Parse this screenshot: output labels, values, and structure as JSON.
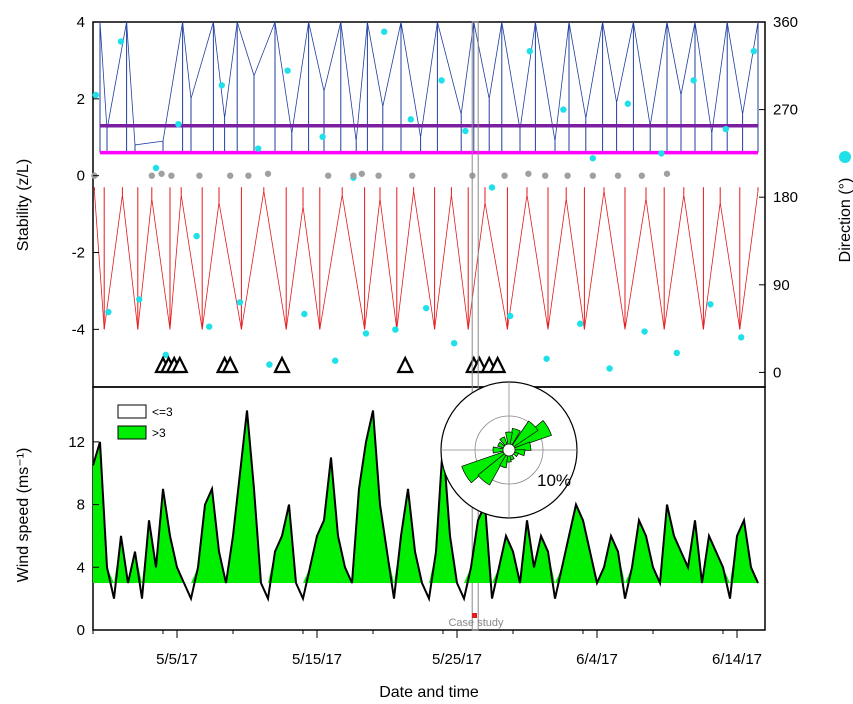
{
  "chart_data": [
    {
      "panel": "top",
      "type": "line",
      "ylabel": "Stability (z/L)",
      "ylim": [
        -5.5,
        4
      ],
      "yticks": [
        "4",
        "2",
        "0",
        "-2",
        "-4"
      ],
      "y2label": "Direction (°)",
      "y2lim": [
        -15,
        360
      ],
      "y2ticks": [
        "360",
        "270",
        "180",
        "90",
        "0"
      ],
      "xlim": [
        "2017-04-29",
        "2017-06-16"
      ],
      "series": [
        {
          "role": "stable",
          "color": "#1f3fa0",
          "values": [
            [
              0.5,
              4
            ],
            [
              1,
              1.2
            ],
            [
              2.4,
              4
            ],
            [
              3,
              0.8
            ],
            [
              5,
              0.9
            ],
            [
              6.4,
              4
            ],
            [
              7,
              2
            ],
            [
              8.6,
              4
            ],
            [
              9.4,
              1.5
            ],
            [
              10.3,
              4
            ],
            [
              11.5,
              2.6
            ],
            [
              13,
              4
            ],
            [
              14.2,
              1.1
            ],
            [
              15.4,
              4
            ],
            [
              16.5,
              2.2
            ],
            [
              17.7,
              4
            ],
            [
              18.8,
              0.9
            ],
            [
              19.6,
              4
            ],
            [
              20.7,
              1.8
            ],
            [
              22,
              4
            ],
            [
              23.4,
              1
            ],
            [
              24.6,
              4
            ],
            [
              26.3,
              1.6
            ],
            [
              27.2,
              4
            ],
            [
              28.3,
              2
            ],
            [
              29.2,
              4
            ],
            [
              30.5,
              1.2
            ],
            [
              31.6,
              4
            ],
            [
              33,
              0.9
            ],
            [
              34,
              4
            ],
            [
              35.2,
              1.5
            ],
            [
              36.4,
              4
            ],
            [
              37.4,
              1.9
            ],
            [
              38.6,
              4
            ],
            [
              39.8,
              1.3
            ],
            [
              41,
              4
            ],
            [
              42,
              2.1
            ],
            [
              43,
              4
            ],
            [
              44.2,
              1.1
            ],
            [
              45.3,
              4
            ],
            [
              46.4,
              1.6
            ],
            [
              47.5,
              4
            ]
          ]
        },
        {
          "role": "unstable",
          "color": "#e31a1c",
          "values": [
            [
              0.1,
              -0.4
            ],
            [
              0.8,
              -4
            ],
            [
              2.1,
              -0.5
            ],
            [
              3.2,
              -4
            ],
            [
              4.2,
              -0.6
            ],
            [
              5.5,
              -4
            ],
            [
              6.3,
              -0.5
            ],
            [
              7.8,
              -4
            ],
            [
              9,
              -0.7
            ],
            [
              10.6,
              -4
            ],
            [
              12.2,
              -0.4
            ],
            [
              13.8,
              -4
            ],
            [
              15,
              -0.8
            ],
            [
              16.2,
              -4
            ],
            [
              17.8,
              -0.5
            ],
            [
              19.4,
              -4
            ],
            [
              20.5,
              -0.6
            ],
            [
              21.7,
              -4
            ],
            [
              22.9,
              -0.4
            ],
            [
              24.4,
              -4
            ],
            [
              25.6,
              -0.5
            ],
            [
              26.8,
              -4
            ],
            [
              28,
              -0.7
            ],
            [
              29.6,
              -4
            ],
            [
              31,
              -0.5
            ],
            [
              32.5,
              -4
            ],
            [
              33.8,
              -0.6
            ],
            [
              35.1,
              -4
            ],
            [
              36.5,
              -0.4
            ],
            [
              38,
              -4
            ],
            [
              39.5,
              -0.6
            ],
            [
              40.8,
              -4
            ],
            [
              42.2,
              -0.5
            ],
            [
              43.6,
              -4
            ],
            [
              44.8,
              -0.7
            ],
            [
              46.2,
              -4
            ],
            [
              47.5,
              -0.4
            ]
          ]
        },
        {
          "role": "threshold-upper",
          "color": "#7b1fa2",
          "values": [
            [
              0.5,
              1.3
            ],
            [
              47.5,
              1.3
            ]
          ]
        },
        {
          "role": "threshold-lower",
          "color": "#ff00ff",
          "values": [
            [
              0.5,
              0.6
            ],
            [
              47.5,
              0.6
            ]
          ]
        },
        {
          "role": "direction",
          "type": "scatter",
          "axis": "y2",
          "color": "#1ee0e8",
          "values": [
            [
              0.2,
              285
            ],
            [
              1.1,
              62
            ],
            [
              2,
              340
            ],
            [
              3.3,
              75
            ],
            [
              4.5,
              210
            ],
            [
              5.2,
              18
            ],
            [
              6.1,
              255
            ],
            [
              7.4,
              140
            ],
            [
              8.3,
              47
            ],
            [
              9.2,
              295
            ],
            [
              10.5,
              72
            ],
            [
              11.8,
              230
            ],
            [
              12.6,
              8
            ],
            [
              13.9,
              310
            ],
            [
              15.1,
              60
            ],
            [
              16.4,
              242
            ],
            [
              17.3,
              12
            ],
            [
              18.6,
              200
            ],
            [
              19.5,
              40
            ],
            [
              20.8,
              350
            ],
            [
              21.6,
              44
            ],
            [
              22.7,
              260
            ],
            [
              23.8,
              66
            ],
            [
              24.9,
              300
            ],
            [
              25.8,
              30
            ],
            [
              26.6,
              248
            ],
            [
              27.7,
              6
            ],
            [
              28.5,
              190
            ],
            [
              29.8,
              58
            ],
            [
              31.2,
              330
            ],
            [
              32.4,
              14
            ],
            [
              33.6,
              270
            ],
            [
              34.8,
              50
            ],
            [
              35.7,
              220
            ],
            [
              36.9,
              4
            ],
            [
              38.2,
              276
            ],
            [
              39.4,
              42
            ],
            [
              40.6,
              225
            ],
            [
              41.7,
              20
            ],
            [
              42.9,
              300
            ],
            [
              44.1,
              70
            ],
            [
              45.2,
              250
            ],
            [
              46.3,
              36
            ],
            [
              47.2,
              330
            ]
          ]
        },
        {
          "role": "neutral",
          "type": "scatter",
          "color": "#a0a0a0",
          "values": [
            [
              0.1,
              0
            ],
            [
              4.2,
              0
            ],
            [
              4.9,
              0.05
            ],
            [
              5.6,
              0
            ],
            [
              7.6,
              0
            ],
            [
              9.8,
              0
            ],
            [
              11.1,
              0
            ],
            [
              12.5,
              0.05
            ],
            [
              16.8,
              0
            ],
            [
              18.6,
              0
            ],
            [
              19.2,
              0.05
            ],
            [
              20.4,
              0
            ],
            [
              22.8,
              0
            ],
            [
              27.1,
              0
            ],
            [
              29.4,
              0
            ],
            [
              31.1,
              0.05
            ],
            [
              32.3,
              0
            ],
            [
              33.9,
              0
            ],
            [
              35.7,
              0
            ],
            [
              37.5,
              0
            ],
            [
              39.2,
              0
            ],
            [
              41,
              0.05
            ]
          ]
        }
      ],
      "markers": [
        {
          "label": "event",
          "shape": "triangle",
          "x": [
            5,
            5.4,
            5.8,
            6.2,
            9.4,
            9.8,
            13.5,
            22.3,
            27.2,
            27.6,
            28.3,
            28.9
          ]
        }
      ]
    },
    {
      "panel": "bottom",
      "type": "area",
      "xlabel": "Date and time",
      "ylabel": "Wind speed (ms⁻¹)",
      "ylim": [
        0,
        15.5
      ],
      "yticks": [
        "12",
        "8",
        "4",
        "0"
      ],
      "xticks": [
        "5/5/17",
        "5/15/17",
        "5/25/17",
        "6/4/17",
        "6/14/17"
      ],
      "xlim": [
        "2017-04-29",
        "2017-06-16"
      ],
      "threshold": 3,
      "x": [
        0,
        0.5,
        1,
        1.5,
        2,
        2.5,
        3,
        3.5,
        4,
        4.5,
        5,
        5.5,
        6,
        6.5,
        7,
        7.5,
        8,
        8.5,
        9,
        9.5,
        10,
        10.5,
        11,
        11.5,
        12,
        12.5,
        13,
        13.5,
        14,
        14.5,
        15,
        15.5,
        16,
        16.5,
        17,
        17.5,
        18,
        18.5,
        19,
        19.5,
        20,
        20.5,
        21,
        21.5,
        22,
        22.5,
        23,
        23.5,
        24,
        24.5,
        25,
        25.5,
        26,
        26.5,
        27,
        27.5,
        28,
        28.5,
        29,
        29.5,
        30,
        30.5,
        31,
        31.5,
        32,
        32.5,
        33,
        33.5,
        34,
        34.5,
        35,
        35.5,
        36,
        36.5,
        37,
        37.5,
        38,
        38.5,
        39,
        39.5,
        40,
        40.5,
        41,
        41.5,
        42,
        42.5,
        43,
        43.5,
        44,
        44.5,
        45,
        45.5,
        46,
        46.5,
        47,
        47.5
      ],
      "series": [
        {
          "name": "Wind speed",
          "values": [
            10.5,
            12,
            4,
            2,
            6,
            3,
            5,
            2,
            7,
            4,
            9,
            6,
            4,
            3,
            2,
            4,
            8,
            9,
            5,
            3,
            6,
            10,
            14,
            9,
            3,
            2,
            5,
            6,
            8,
            3,
            2,
            4,
            6,
            7,
            11,
            6,
            4,
            3,
            9,
            12,
            14,
            8,
            5,
            2,
            6,
            9,
            5,
            3,
            2,
            5,
            12,
            6,
            3,
            2,
            4,
            7,
            8,
            2,
            4,
            6,
            5,
            3,
            7,
            4,
            6,
            5,
            2,
            4,
            6,
            8,
            7,
            5,
            3,
            4,
            6,
            5,
            2,
            4,
            7,
            6,
            4,
            3,
            8,
            6,
            5,
            4,
            7,
            3,
            6,
            5,
            4,
            2,
            6,
            7,
            4,
            3
          ]
        }
      ],
      "legend": [
        "<=3",
        ">3"
      ],
      "annotation": "Case study",
      "windrose": {
        "label": "10%"
      }
    }
  ]
}
